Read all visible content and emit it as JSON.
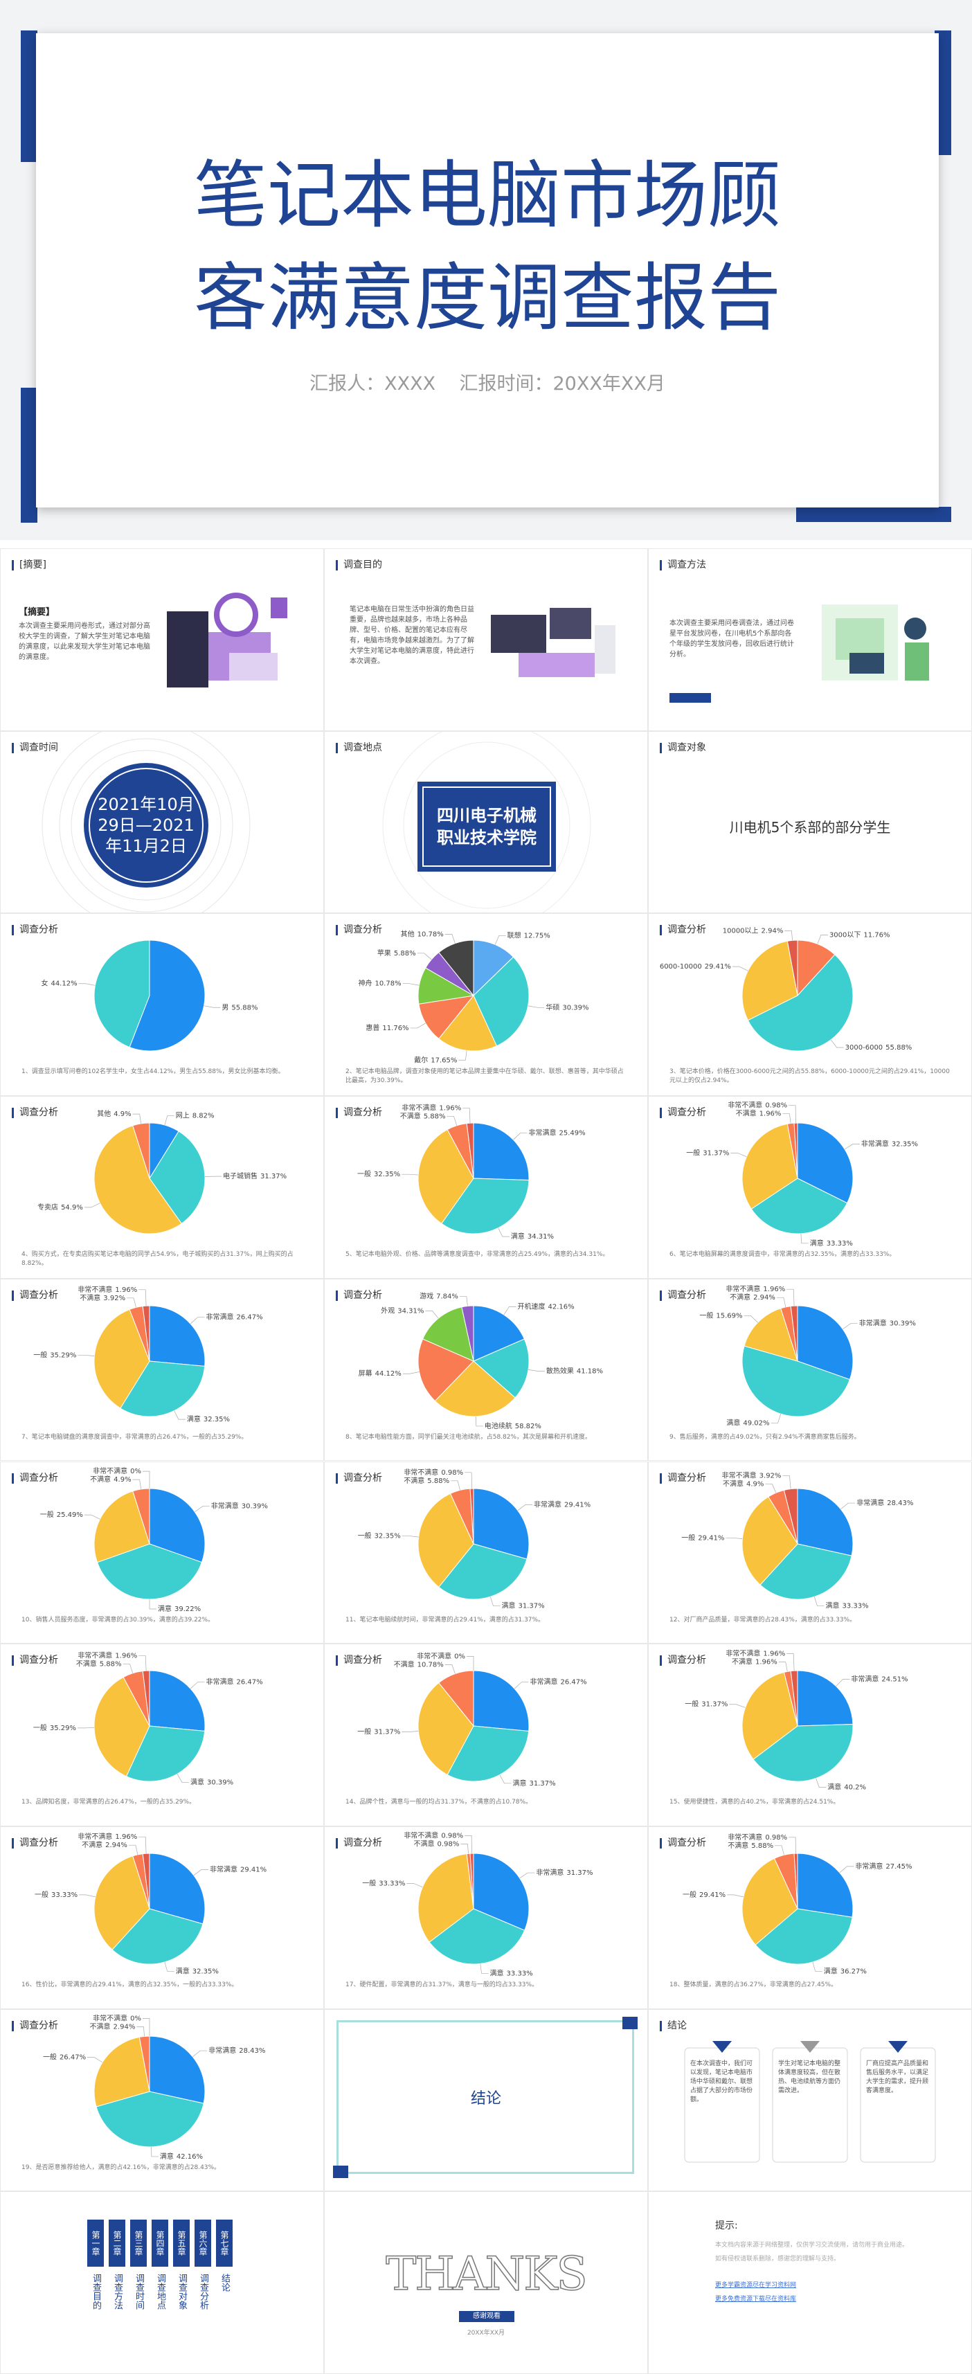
{
  "cover": {
    "title": [
      "笔记本电脑市场顾",
      "客满意度调查报告"
    ],
    "subtitle": "汇报人：XXXX    汇报时间：20XX年XX月"
  },
  "intro": [
    {
      "heading": "[摘要]",
      "subheading": "【摘要】",
      "text": "本次调查主要采用问卷形式，通过对部分高校大学生的调查，了解大学生对笔记本电脑的满意度，以此来发现大学生对笔记本电脑的满意度。"
    },
    {
      "heading": "调查目的",
      "text": "笔记本电脑在日常生活中扮演的角色日益重要，品牌也越来越多，市场上各种品牌、型号、价格、配置的笔记本应有尽有，电脑市场竞争越来越激烈。为了了解大学生对笔记本电脑的满意度，特此进行本次调查。"
    },
    {
      "heading": "调查方法",
      "text": "本次调查主要采用问卷调查法，通过问卷星平台发放问卷，在川电机5个系部向各个年级的学生发放问卷，回收后进行统计分析。"
    },
    {
      "heading": "调查时间",
      "text": "2021年10月29日—2021年11月2日"
    },
    {
      "heading": "调查地点",
      "text": "四川电子机械职业技术学院"
    },
    {
      "heading": "调查对象",
      "text": "川电机5个系部的部分学生"
    }
  ],
  "chart_data": [
    {
      "type": "pie",
      "title": "调查分析",
      "categories": [
        "男",
        "女"
      ],
      "values": [
        55.88,
        44.12
      ],
      "value_labels": [
        "55.88%",
        "44.12%"
      ],
      "colors": [
        "#1f8ef1",
        "#3dcfcf"
      ],
      "caption": "1、调查显示填写问卷的102名学生中，女生占44.12%，男生占55.88%，男女比例基本均衡。"
    },
    {
      "type": "pie",
      "title": "调查分析",
      "categories": [
        "联想",
        "华硕",
        "戴尔",
        "惠普",
        "神舟",
        "苹果",
        "其他"
      ],
      "values": [
        12.75,
        30.39,
        17.65,
        11.76,
        10.78,
        5.88,
        10.78
      ],
      "value_labels": [
        "12.75%",
        "30.39%",
        "17.65%",
        "11.76%",
        "10.78%",
        "5.88%",
        "10.78%"
      ],
      "colors": [
        "#5aaaf2",
        "#3dcfcf",
        "#f9c23c",
        "#f97b52",
        "#7ac943",
        "#8e5cc9",
        "#444444"
      ],
      "caption": "2、笔记本电脑品牌，调查对象使用的笔记本品牌主要集中在华硕、戴尔、联想、惠普等，其中华硕占比最高，为30.39%。"
    },
    {
      "type": "pie",
      "title": "调查分析",
      "categories": [
        "3000以下",
        "3000-6000",
        "6000-10000",
        "10000以上"
      ],
      "values": [
        11.76,
        55.88,
        29.41,
        2.94
      ],
      "value_labels": [
        "11.76%",
        "55.88%",
        "29.41%",
        "2.94%"
      ],
      "colors": [
        "#f97b52",
        "#3dcfcf",
        "#f9c23c",
        "#e05a4a"
      ],
      "caption": "3、笔记本价格，价格在3000-6000元之间的占55.88%，6000-10000元之间的占29.41%，10000元以上的仅占2.94%。"
    },
    {
      "type": "pie",
      "title": "调查分析",
      "categories": [
        "网上",
        "电子城销售",
        "专卖店",
        "其他"
      ],
      "values": [
        8.82,
        31.37,
        54.9,
        4.9
      ],
      "value_labels": [
        "8.82%",
        "31.37%",
        "54.9%",
        "4.9%"
      ],
      "colors": [
        "#1f8ef1",
        "#3dcfcf",
        "#f9c23c",
        "#f97b52"
      ],
      "caption": "4、购买方式，在专卖店购买笔记本电脑的同学占54.9%，电子城购买的占31.37%，网上购买的占8.82%。"
    },
    {
      "type": "pie",
      "title": "调查分析",
      "categories": [
        "非常满意",
        "满意",
        "一般",
        "不满意",
        "非常不满意"
      ],
      "values": [
        25.49,
        34.31,
        32.35,
        5.88,
        1.96
      ],
      "value_labels": [
        "25.49%",
        "34.31%",
        "32.35%",
        "5.88%",
        "1.96%"
      ],
      "colors": [
        "#1f8ef1",
        "#3dcfcf",
        "#f9c23c",
        "#f97b52",
        "#e05a4a"
      ],
      "caption": "5、笔记本电脑外观、价格、品牌等满意度调查中，非常满意的占25.49%，满意的占34.31%。"
    },
    {
      "type": "pie",
      "title": "调查分析",
      "categories": [
        "非常满意",
        "满意",
        "一般",
        "不满意",
        "非常不满意"
      ],
      "values": [
        32.35,
        33.33,
        31.37,
        1.96,
        0.98
      ],
      "value_labels": [
        "32.35%",
        "33.33%",
        "31.37%",
        "1.96%",
        "0.98%"
      ],
      "colors": [
        "#1f8ef1",
        "#3dcfcf",
        "#f9c23c",
        "#f97b52",
        "#e05a4a"
      ],
      "caption": "6、笔记本电脑屏幕的满意度调查中，非常满意的占32.35%，满意的占33.33%。"
    },
    {
      "type": "pie",
      "title": "调查分析",
      "categories": [
        "非常满意",
        "满意",
        "一般",
        "不满意",
        "非常不满意"
      ],
      "values": [
        26.47,
        32.35,
        35.29,
        3.92,
        1.96
      ],
      "value_labels": [
        "26.47%",
        "32.35%",
        "35.29%",
        "3.92%",
        "1.96%"
      ],
      "colors": [
        "#1f8ef1",
        "#3dcfcf",
        "#f9c23c",
        "#f97b52",
        "#e05a4a"
      ],
      "caption": "7、笔记本电脑键盘的满意度调查中，非常满意的占26.47%，一般的占35.29%。"
    },
    {
      "type": "pie",
      "title": "调查分析",
      "categories": [
        "开机速度",
        "散热效果",
        "电池续航",
        "屏幕",
        "外观",
        "游戏"
      ],
      "values": [
        42.16,
        41.18,
        58.82,
        44.12,
        34.31,
        7.84
      ],
      "value_labels": [
        "42.16%",
        "41.18%",
        "58.82%",
        "44.12%",
        "34.31%",
        "7.84%"
      ],
      "colors": [
        "#1f8ef1",
        "#3dcfcf",
        "#f9c23c",
        "#f97b52",
        "#7ac943",
        "#8e5cc9"
      ],
      "caption": "8、笔记本电脑性能方面，同学们最关注电池续航，占58.82%，其次是屏幕和开机速度。"
    },
    {
      "type": "pie",
      "title": "调查分析",
      "categories": [
        "非常满意",
        "满意",
        "一般",
        "不满意",
        "非常不满意"
      ],
      "values": [
        30.39,
        49.02,
        15.69,
        2.94,
        1.96
      ],
      "value_labels": [
        "30.39%",
        "49.02%",
        "15.69%",
        "2.94%",
        "1.96%"
      ],
      "colors": [
        "#1f8ef1",
        "#3dcfcf",
        "#f9c23c",
        "#f97b52",
        "#e05a4a"
      ],
      "caption": "9、售后服务，满意的占49.02%，只有2.94%不满意商家售后服务。"
    },
    {
      "type": "pie",
      "title": "调查分析",
      "categories": [
        "非常满意",
        "满意",
        "一般",
        "不满意",
        "非常不满意"
      ],
      "values": [
        30.39,
        39.22,
        25.49,
        4.9,
        0
      ],
      "value_labels": [
        "30.39%",
        "39.22%",
        "25.49%",
        "4.9%",
        "0%"
      ],
      "colors": [
        "#1f8ef1",
        "#3dcfcf",
        "#f9c23c",
        "#f97b52",
        "#e05a4a"
      ],
      "caption": "10、销售人员服务态度，非常满意的占30.39%，满意的占39.22%。"
    },
    {
      "type": "pie",
      "title": "调查分析",
      "categories": [
        "非常满意",
        "满意",
        "一般",
        "不满意",
        "非常不满意"
      ],
      "values": [
        29.41,
        31.37,
        32.35,
        5.88,
        0.98
      ],
      "value_labels": [
        "29.41%",
        "31.37%",
        "32.35%",
        "5.88%",
        "0.98%"
      ],
      "colors": [
        "#1f8ef1",
        "#3dcfcf",
        "#f9c23c",
        "#f97b52",
        "#e05a4a"
      ],
      "caption": "11、笔记本电脑续航时间，非常满意的占29.41%，满意的占31.37%。"
    },
    {
      "type": "pie",
      "title": "调查分析",
      "categories": [
        "非常满意",
        "满意",
        "一般",
        "不满意",
        "非常不满意"
      ],
      "values": [
        28.43,
        33.33,
        29.41,
        4.9,
        3.92
      ],
      "value_labels": [
        "28.43%",
        "33.33%",
        "29.41%",
        "4.9%",
        "3.92%"
      ],
      "colors": [
        "#1f8ef1",
        "#3dcfcf",
        "#f9c23c",
        "#f97b52",
        "#e05a4a"
      ],
      "caption": "12、对厂商产品质量，非常满意的占28.43%，满意的占33.33%。"
    },
    {
      "type": "pie",
      "title": "调查分析",
      "categories": [
        "非常满意",
        "满意",
        "一般",
        "不满意",
        "非常不满意"
      ],
      "values": [
        26.47,
        30.39,
        35.29,
        5.88,
        1.96
      ],
      "value_labels": [
        "26.47%",
        "30.39%",
        "35.29%",
        "5.88%",
        "1.96%"
      ],
      "colors": [
        "#1f8ef1",
        "#3dcfcf",
        "#f9c23c",
        "#f97b52",
        "#e05a4a"
      ],
      "caption": "13、品牌知名度，非常满意的占26.47%，一般的占35.29%。"
    },
    {
      "type": "pie",
      "title": "调查分析",
      "categories": [
        "非常满意",
        "满意",
        "一般",
        "不满意",
        "非常不满意"
      ],
      "values": [
        26.47,
        31.37,
        31.37,
        10.78,
        0
      ],
      "value_labels": [
        "26.47%",
        "31.37%",
        "31.37%",
        "10.78%",
        "0%"
      ],
      "colors": [
        "#1f8ef1",
        "#3dcfcf",
        "#f9c23c",
        "#f97b52",
        "#e05a4a"
      ],
      "caption": "14、品牌个性，满意与一般的均占31.37%，不满意的占10.78%。"
    },
    {
      "type": "pie",
      "title": "调查分析",
      "categories": [
        "非常满意",
        "满意",
        "一般",
        "不满意",
        "非常不满意"
      ],
      "values": [
        24.51,
        40.2,
        31.37,
        1.96,
        1.96
      ],
      "value_labels": [
        "24.51%",
        "40.2%",
        "31.37%",
        "1.96%",
        "1.96%"
      ],
      "colors": [
        "#1f8ef1",
        "#3dcfcf",
        "#f9c23c",
        "#f97b52",
        "#e05a4a"
      ],
      "caption": "15、使用便捷性，满意的占40.2%，非常满意的占24.51%。"
    },
    {
      "type": "pie",
      "title": "调查分析",
      "categories": [
        "非常满意",
        "满意",
        "一般",
        "不满意",
        "非常不满意"
      ],
      "values": [
        29.41,
        32.35,
        33.33,
        2.94,
        1.96
      ],
      "value_labels": [
        "29.41%",
        "32.35%",
        "33.33%",
        "2.94%",
        "1.96%"
      ],
      "colors": [
        "#1f8ef1",
        "#3dcfcf",
        "#f9c23c",
        "#f97b52",
        "#e05a4a"
      ],
      "caption": "16、性价比，非常满意的占29.41%，满意的占32.35%，一般的占33.33%。"
    },
    {
      "type": "pie",
      "title": "调查分析",
      "categories": [
        "非常满意",
        "满意",
        "一般",
        "不满意",
        "非常不满意"
      ],
      "values": [
        31.37,
        33.33,
        33.33,
        0.98,
        0.98
      ],
      "value_labels": [
        "31.37%",
        "33.33%",
        "33.33%",
        "0.98%",
        "0.98%"
      ],
      "colors": [
        "#1f8ef1",
        "#3dcfcf",
        "#f9c23c",
        "#f97b52",
        "#e05a4a"
      ],
      "caption": "17、硬件配置，非常满意的占31.37%，满意与一般的均占33.33%。"
    },
    {
      "type": "pie",
      "title": "调查分析",
      "categories": [
        "非常满意",
        "满意",
        "一般",
        "不满意",
        "非常不满意"
      ],
      "values": [
        27.45,
        36.27,
        29.41,
        5.88,
        0.98
      ],
      "value_labels": [
        "27.45%",
        "36.27%",
        "29.41%",
        "5.88%",
        "0.98%"
      ],
      "colors": [
        "#1f8ef1",
        "#3dcfcf",
        "#f9c23c",
        "#f97b52",
        "#e05a4a"
      ],
      "caption": "18、整体质量，满意的占36.27%，非常满意的占27.45%。"
    },
    {
      "type": "pie",
      "title": "调查分析",
      "categories": [
        "非常满意",
        "满意",
        "一般",
        "不满意",
        "非常不满意"
      ],
      "values": [
        28.43,
        42.16,
        26.47,
        2.94,
        0
      ],
      "value_labels": [
        "28.43%",
        "42.16%",
        "26.47%",
        "2.94%",
        "0%"
      ],
      "colors": [
        "#1f8ef1",
        "#3dcfcf",
        "#f9c23c",
        "#f97b52",
        "#e05a4a"
      ],
      "caption": "19、是否愿意推荐给他人，满意的占42.16%，非常满意的占28.43%。"
    }
  ],
  "conclusion_title": "结论",
  "conclusion": {
    "heading": "结论",
    "cards": [
      "在本次调查中，我们可以发现，笔记本电脑市场中华硕和戴尔、联想占据了大部分的市场份额。",
      "学生对笔记本电脑的整体满意度较高，但在散热、电池续航等方面仍需改进。",
      "厂商应提高产品质量和售后服务水平，以满足大学生的需求，提升顾客满意度。"
    ]
  },
  "contents": {
    "chapters": [
      "第一章",
      "第二章",
      "第三章",
      "第四章",
      "第五章",
      "第六章",
      "第七章"
    ],
    "items": [
      "调查目的",
      "调查方法",
      "调查时间",
      "调查地点",
      "调查对象",
      "调查分析",
      "结论"
    ]
  },
  "thanks": {
    "title": "THANKS",
    "tag": "感谢观看",
    "date": "20XX年XX月"
  },
  "tips": {
    "heading": "提示:",
    "lines": [
      "本文档内容来源于网络整理，仅供学习交流使用，请勿用于商业用途。",
      "如有侵权请联系删除，感谢您的理解与支持。",
      "更多学霸资源尽在学习资料网",
      "更多免费资源下载尽在资料库"
    ]
  }
}
